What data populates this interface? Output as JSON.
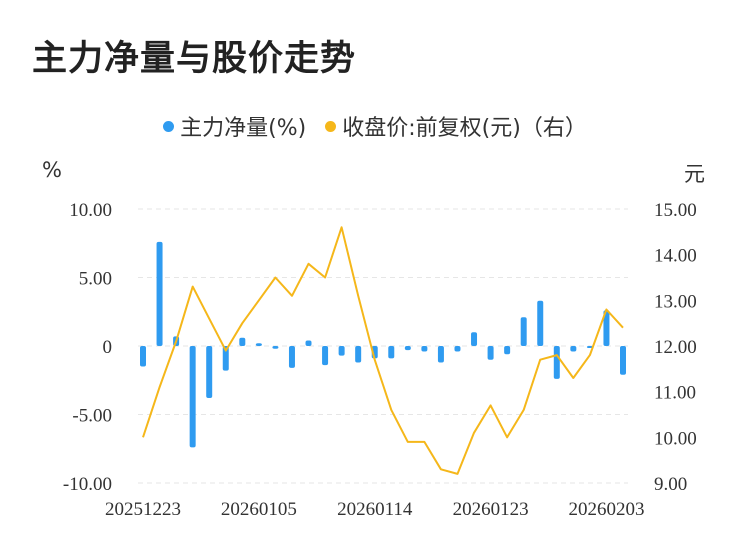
{
  "title": "主力净量与股价走势",
  "legend": {
    "net": "主力净量(%)",
    "price": "收盘价:前复权(元)（右）"
  },
  "units": {
    "left": "%",
    "right": "元"
  },
  "colors": {
    "bar": "#2f9bf0",
    "line": "#f5b71a",
    "grid": "#e6e6e6"
  },
  "chart_data": {
    "type": "bar",
    "title": "主力净量与股价走势",
    "xlabel": "",
    "x_tick_labels": [
      "20251223",
      "20260105",
      "20260114",
      "20260123",
      "20260203"
    ],
    "ylim_left": [
      -10,
      10
    ],
    "ylim_right": [
      9,
      15
    ],
    "y_ticks_left": [
      "10.00",
      "5.00",
      "0",
      "-5.00",
      "-10.00"
    ],
    "y_ticks_right": [
      "15.00",
      "14.00",
      "13.00",
      "12.00",
      "11.00",
      "10.00",
      "9.00"
    ],
    "grid": true,
    "legend_position": "top",
    "series": [
      {
        "name": "主力净量(%)",
        "type": "bar",
        "axis": "left",
        "values": [
          -1.5,
          7.6,
          0.7,
          -7.4,
          -3.8,
          -1.8,
          0.6,
          0.2,
          -0.2,
          -1.6,
          0.4,
          -1.4,
          -0.7,
          -1.2,
          -0.9,
          -0.9,
          -0.3,
          -0.4,
          -1.2,
          -0.4,
          1.0,
          -1.0,
          -0.6,
          2.1,
          3.3,
          -2.4,
          -0.4,
          -0.1,
          2.6,
          -2.1
        ]
      },
      {
        "name": "收盘价:前复权(元)（右）",
        "type": "line",
        "axis": "right",
        "values": [
          10.0,
          11.1,
          12.1,
          13.3,
          12.6,
          11.9,
          12.5,
          13.0,
          13.5,
          13.1,
          13.8,
          13.5,
          14.6,
          13.1,
          11.7,
          10.6,
          9.9,
          9.9,
          9.3,
          9.2,
          10.1,
          10.7,
          10.0,
          10.6,
          11.7,
          11.8,
          11.3,
          11.8,
          12.8,
          12.4
        ]
      }
    ]
  }
}
